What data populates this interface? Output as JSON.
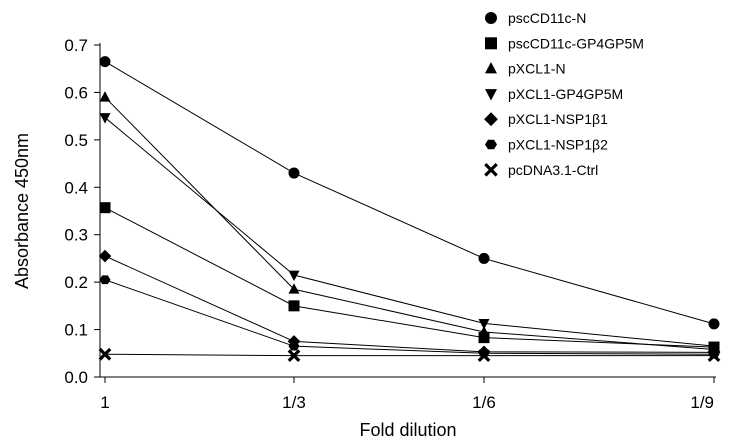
{
  "chart_data": {
    "type": "line",
    "title": "",
    "xlabel": "Fold dilution",
    "ylabel": "Absorbance 450nm",
    "categories": [
      "1",
      "1/3",
      "1/6",
      "1/9"
    ],
    "ylim": [
      0,
      0.7
    ],
    "yticks": [
      0.0,
      0.1,
      0.2,
      0.3,
      0.4,
      0.5,
      0.6,
      0.7
    ],
    "ytick_labels": [
      "0.0",
      "0.1",
      "0.2",
      "0.3",
      "0.4",
      "0.5",
      "0.6",
      "0.7"
    ],
    "legend_position": "top-right",
    "grid": false,
    "line_color": "#000000",
    "series": [
      {
        "name": "pscCD11c-N",
        "marker": "circle",
        "values": [
          0.665,
          0.43,
          0.25,
          0.112
        ]
      },
      {
        "name": "pscCD11c-GP4GP5M",
        "marker": "square",
        "values": [
          0.357,
          0.15,
          0.083,
          0.063
        ]
      },
      {
        "name": "pXCL1-N",
        "marker": "triangle-up",
        "values": [
          0.59,
          0.185,
          0.095,
          0.058
        ]
      },
      {
        "name": "pXCL1-GP4GP5M",
        "marker": "triangle-down",
        "values": [
          0.547,
          0.215,
          0.113,
          0.065
        ]
      },
      {
        "name": "pXCL1-NSP1β1",
        "marker": "diamond",
        "values": [
          0.255,
          0.075,
          0.053,
          0.052
        ]
      },
      {
        "name": "pXCL1-NSP1β2",
        "marker": "hexagon",
        "values": [
          0.205,
          0.065,
          0.05,
          0.048
        ]
      },
      {
        "name": "pcDNA3.1-Ctrl",
        "marker": "x",
        "values": [
          0.048,
          0.045,
          0.045,
          0.045
        ]
      }
    ]
  }
}
